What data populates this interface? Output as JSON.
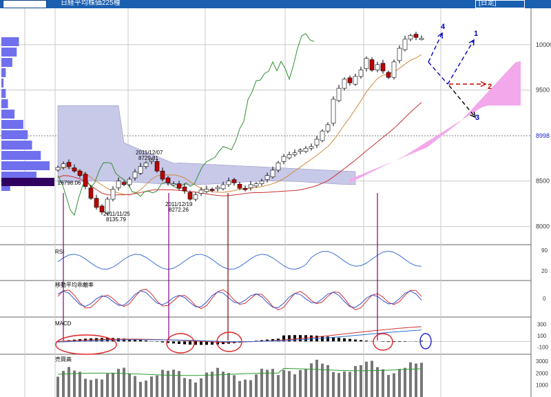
{
  "title": "日経平均株価225種",
  "period_label": "[日足]",
  "colors": {
    "up_candle": "#ffffff",
    "down_candle": "#c00000",
    "price_line": "#2f8f2f",
    "ichimoku_cloud_bear": "#c8c8e8",
    "ichimoku_cloud_bull": "#f2a8ea",
    "base_line": "#d08a3a",
    "conversion_line": "#c83030",
    "volume_profile": "#7070ee",
    "signal_marker": "#800080"
  },
  "chart_data": [
    {
      "type": "candlestick",
      "panel": "price",
      "ylim": [
        7800,
        10400
      ],
      "y_ticks": [
        8000,
        8500,
        8998,
        9500,
        10000
      ],
      "current_level_label": "8998",
      "annotations": [
        {
          "label_date": "2011/11/25",
          "label_value": "8135.79"
        },
        {
          "label_date": "2011/12/07",
          "label_value": "8729.81"
        },
        {
          "label_date": "2011/12/19",
          "label_value": "8272.26"
        },
        {
          "label_value": "26798.06"
        }
      ],
      "forecast_arrows": [
        {
          "label": "1"
        },
        {
          "label": "2"
        },
        {
          "label": "3"
        },
        {
          "label": "4"
        }
      ],
      "closes": [
        8650,
        8690,
        8660,
        8610,
        8560,
        8440,
        8310,
        8210,
        8160,
        8300,
        8410,
        8500,
        8460,
        8520,
        8600,
        8660,
        8700,
        8730,
        8610,
        8520,
        8480,
        8470,
        8420,
        8390,
        8300,
        8350,
        8400,
        8410,
        8400,
        8430,
        8460,
        8500,
        8480,
        8420,
        8410,
        8460,
        8470,
        8500,
        8560,
        8620,
        8700,
        8770,
        8790,
        8810,
        8840,
        8860,
        8880,
        8960,
        9050,
        9120,
        9400,
        9520,
        9620,
        9580,
        9650,
        9720,
        9850,
        9720,
        9780,
        9710,
        9640,
        9810,
        9960,
        10060,
        10100,
        10080,
        10070
      ],
      "volume_profile_values": [
        8,
        7,
        5,
        2,
        1,
        2,
        3,
        6,
        10,
        12,
        14,
        18,
        22,
        16,
        4
      ]
    },
    {
      "type": "line",
      "panel": "RSI",
      "title": "RSI",
      "ylim": [
        0,
        100
      ],
      "y_ticks": [
        20,
        90
      ]
    },
    {
      "type": "line",
      "panel": "deviation",
      "title": "移動平均乖離率",
      "y_ticks": [
        0
      ]
    },
    {
      "type": "bar",
      "panel": "MACD",
      "title": "MACD",
      "ylim": [
        -200,
        400
      ],
      "y_ticks": [
        -100,
        100,
        300
      ]
    },
    {
      "type": "bar",
      "panel": "volume",
      "title": "売買高",
      "ylim": [
        0,
        3400
      ],
      "y_ticks": [
        1000,
        2000,
        3000
      ]
    }
  ]
}
